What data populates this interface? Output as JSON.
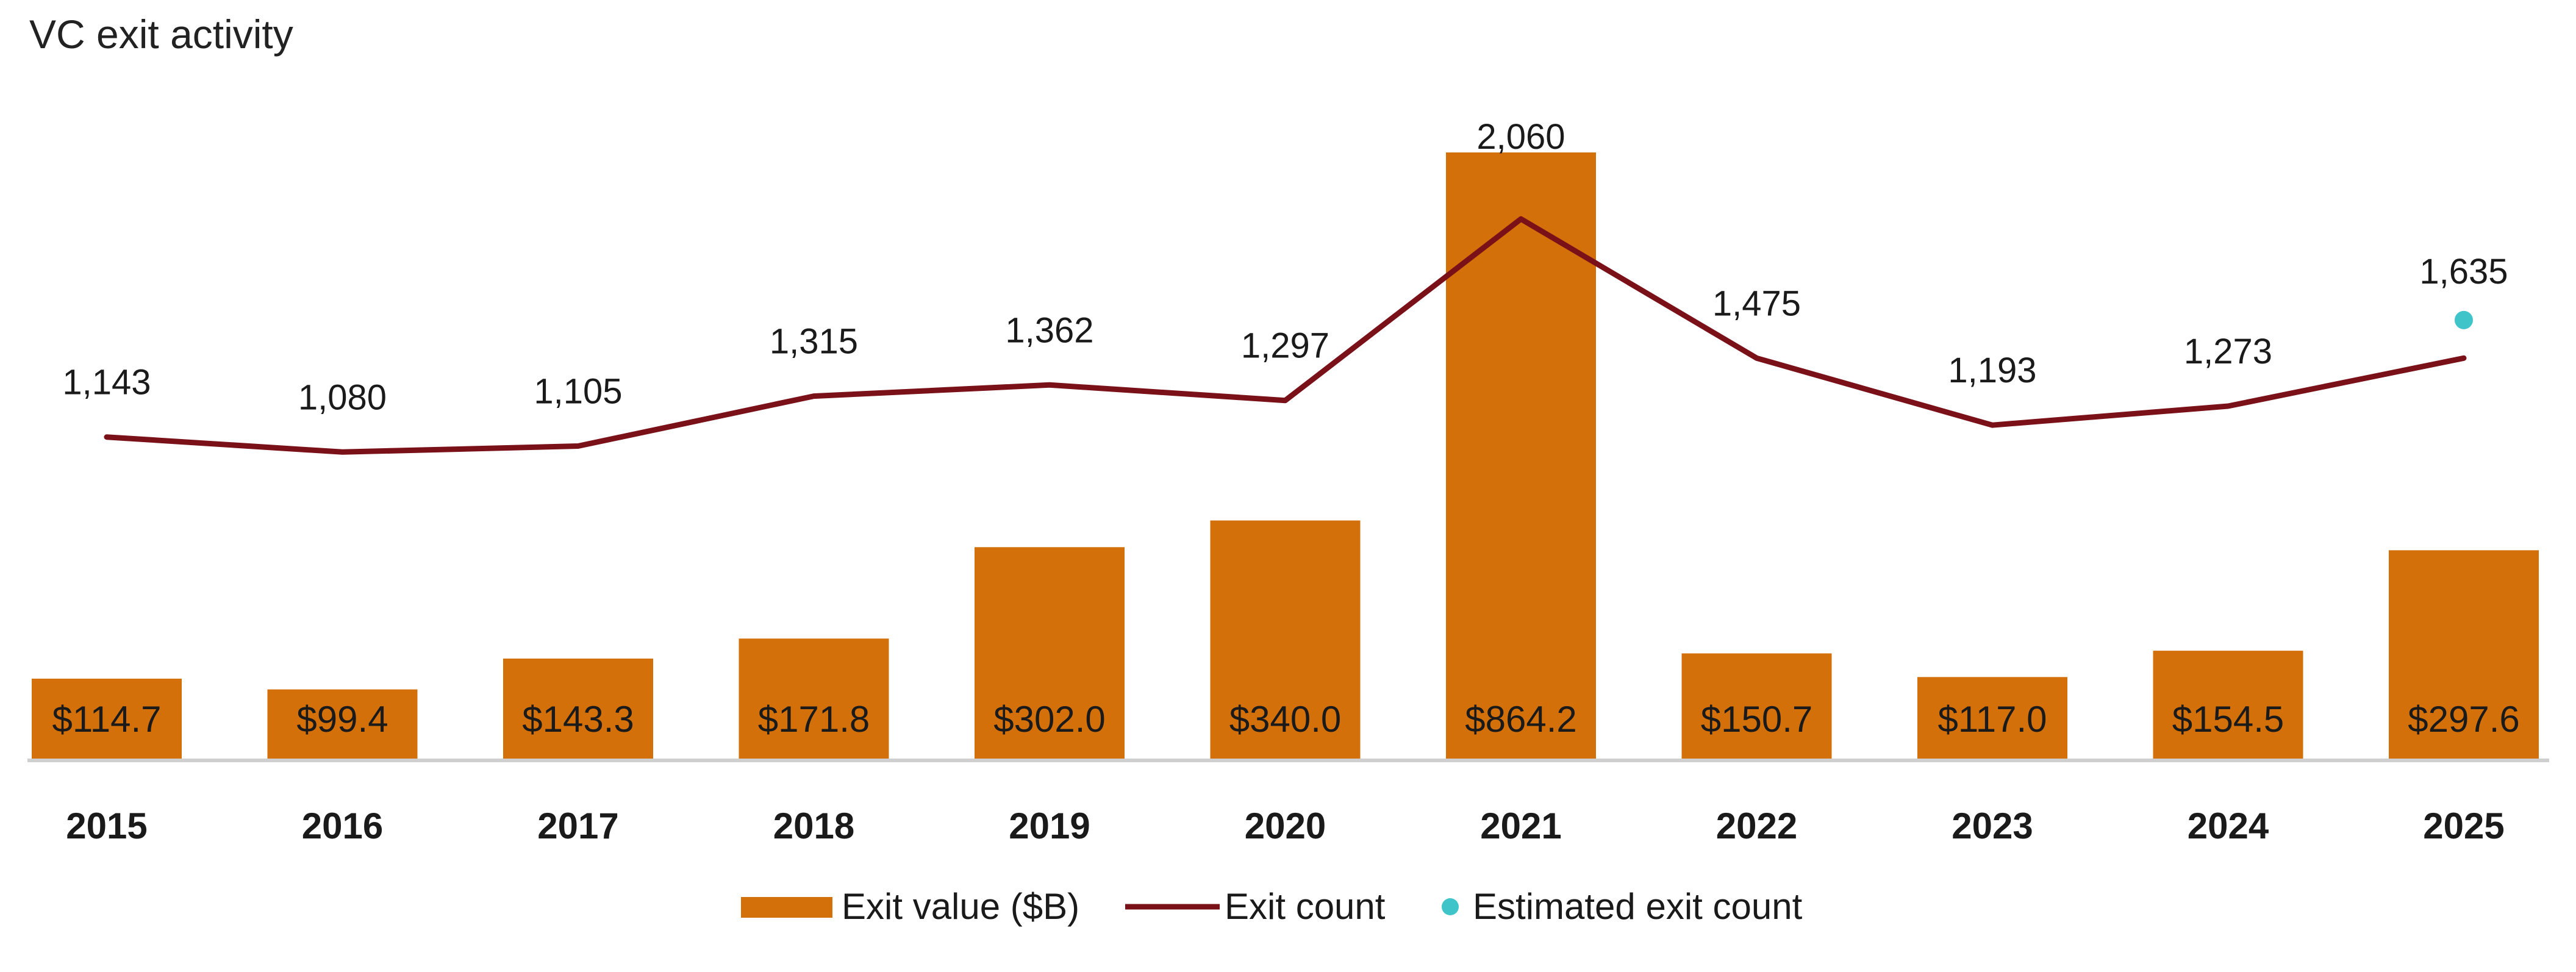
{
  "chart_data": {
    "type": "bar",
    "title": "VC exit activity",
    "categories": [
      "2015",
      "2016",
      "2017",
      "2018",
      "2019",
      "2020",
      "2021",
      "2022",
      "2023",
      "2024",
      "2025"
    ],
    "series": [
      {
        "name": "Exit value ($B)",
        "kind": "bar",
        "values": [
          114.7,
          99.4,
          143.3,
          171.8,
          302.0,
          340.0,
          864.2,
          150.7,
          117.0,
          154.5,
          297.6
        ],
        "labels": [
          "$114.7",
          "$99.4",
          "$143.3",
          "$171.8",
          "$302.0",
          "$340.0",
          "$864.2",
          "$150.7",
          "$117.0",
          "$154.5",
          "$297.6"
        ],
        "color": "#D4700A"
      },
      {
        "name": "Exit count",
        "kind": "line",
        "values": [
          1143,
          1080,
          1105,
          1315,
          1362,
          1297,
          2060,
          1475,
          1193,
          1273,
          1475
        ],
        "labels": [
          "1,143",
          "1,080",
          "1,105",
          "1,315",
          "1,362",
          "1,297",
          "2,060",
          "1,475",
          "1,193",
          "1,273",
          ""
        ],
        "color": "#7A1018"
      },
      {
        "name": "Estimated exit count",
        "kind": "scatter",
        "values": [
          null,
          null,
          null,
          null,
          null,
          null,
          null,
          null,
          null,
          null,
          1635
        ],
        "labels": [
          "",
          "",
          "",
          "",
          "",
          "",
          "",
          "",
          "",
          "",
          "1,635"
        ],
        "color": "#3EC4C9"
      }
    ],
    "legend_position": "bottom",
    "grid": false
  }
}
